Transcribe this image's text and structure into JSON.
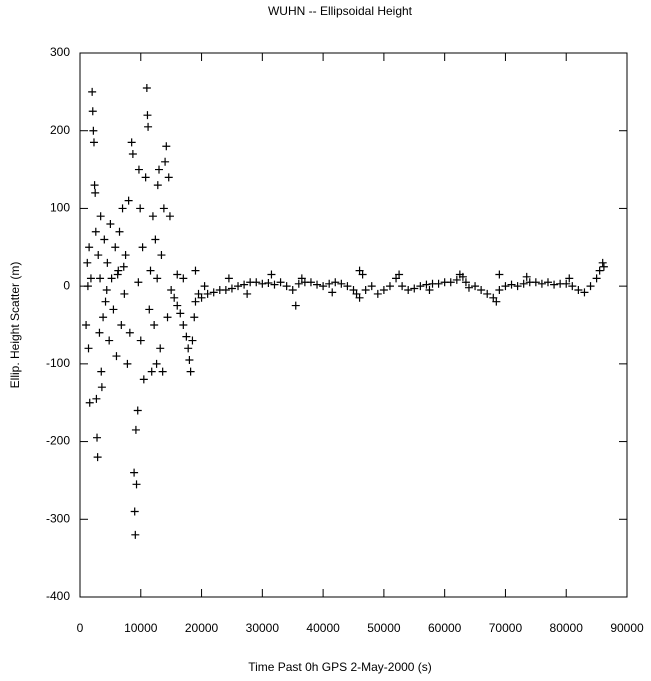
{
  "chart_data": {
    "type": "scatter",
    "title": "WUHN -- Ellipsoidal Height",
    "x_label": "Time Past 0h GPS 2-May-2000  (s)",
    "y_label": "Ellip. Height Scatter  (m)",
    "color": "#000000",
    "marker": "+",
    "xlim": [
      0,
      90000
    ],
    "ylim": [
      -400,
      300
    ],
    "xticks": [
      0,
      10000,
      20000,
      30000,
      40000,
      50000,
      60000,
      70000,
      80000,
      90000
    ],
    "yticks": [
      -400,
      -300,
      -200,
      -100,
      0,
      100,
      200,
      300
    ],
    "x": [
      1000,
      1200,
      1300,
      1400,
      1500,
      1600,
      1800,
      2000,
      2100,
      2200,
      2300,
      2400,
      2500,
      2600,
      2700,
      2800,
      2900,
      3000,
      3200,
      3300,
      3400,
      3500,
      3600,
      3800,
      4000,
      4200,
      4400,
      4500,
      4800,
      5000,
      5200,
      5500,
      5800,
      6000,
      6200,
      6300,
      6500,
      6800,
      7000,
      7200,
      7300,
      7500,
      7800,
      8000,
      8200,
      8500,
      8700,
      8900,
      9000,
      9100,
      9200,
      9300,
      9500,
      9600,
      9700,
      9900,
      10000,
      10300,
      10500,
      10800,
      11000,
      11100,
      11200,
      11400,
      11600,
      11800,
      12000,
      12200,
      12400,
      12600,
      12700,
      12800,
      13000,
      13200,
      13400,
      13600,
      13800,
      14000,
      14200,
      14400,
      14600,
      14800,
      15000,
      15500,
      16000,
      16000,
      16500,
      17000,
      17000,
      17500,
      17800,
      18000,
      18200,
      18500,
      18800,
      19000,
      19000,
      19500,
      20000,
      20500,
      21000,
      22000,
      23000,
      24000,
      24500,
      25000,
      26000,
      27000,
      27500,
      28000,
      29000,
      30000,
      31000,
      31500,
      32000,
      33000,
      34000,
      35000,
      35500,
      36000,
      36500,
      37000,
      38000,
      39000,
      40000,
      41000,
      41500,
      42000,
      43000,
      44000,
      45000,
      45500,
      46000,
      46000,
      46500,
      47000,
      48000,
      49000,
      50000,
      51000,
      52000,
      52500,
      53000,
      54000,
      55000,
      56000,
      57000,
      57500,
      58000,
      59000,
      60000,
      61000,
      62000,
      62500,
      63000,
      63500,
      64000,
      65000,
      66000,
      67000,
      68000,
      68500,
      69000,
      69000,
      70000,
      71000,
      72000,
      73000,
      73500,
      74000,
      75000,
      76000,
      77000,
      78000,
      79000,
      80000,
      80500,
      81000,
      82000,
      83000,
      84000,
      85000,
      85500,
      86000,
      86200
    ],
    "y": [
      -50,
      30,
      0,
      -80,
      50,
      -150,
      10,
      250,
      225,
      200,
      185,
      130,
      120,
      70,
      -145,
      -195,
      -220,
      40,
      -60,
      10,
      90,
      -110,
      -130,
      -40,
      60,
      -20,
      -5,
      30,
      -70,
      80,
      10,
      -30,
      50,
      -90,
      15,
      20,
      70,
      -50,
      100,
      25,
      -10,
      40,
      -100,
      110,
      -60,
      185,
      170,
      -240,
      -290,
      -320,
      -185,
      -255,
      -160,
      5,
      150,
      100,
      -70,
      50,
      -120,
      140,
      255,
      220,
      205,
      -30,
      20,
      -110,
      90,
      -50,
      60,
      -100,
      10,
      130,
      150,
      -80,
      40,
      -110,
      100,
      160,
      180,
      -40,
      140,
      90,
      -5,
      -15,
      -25,
      15,
      -35,
      -50,
      10,
      -65,
      -80,
      -95,
      -110,
      -70,
      -40,
      -20,
      20,
      -10,
      -15,
      0,
      -10,
      -8,
      -5,
      -5,
      10,
      -3,
      0,
      2,
      -10,
      5,
      5,
      3,
      4,
      15,
      2,
      5,
      0,
      -5,
      -25,
      3,
      10,
      5,
      5,
      2,
      0,
      3,
      -8,
      5,
      3,
      0,
      -5,
      -10,
      -15,
      20,
      15,
      -5,
      0,
      -10,
      -5,
      0,
      10,
      15,
      0,
      -5,
      -3,
      0,
      2,
      -5,
      3,
      3,
      5,
      5,
      8,
      15,
      12,
      5,
      -2,
      0,
      -5,
      -10,
      -15,
      -20,
      -5,
      15,
      0,
      2,
      0,
      3,
      12,
      5,
      5,
      3,
      5,
      2,
      3,
      3,
      10,
      0,
      -5,
      -8,
      0,
      10,
      20,
      30,
      25
    ]
  }
}
